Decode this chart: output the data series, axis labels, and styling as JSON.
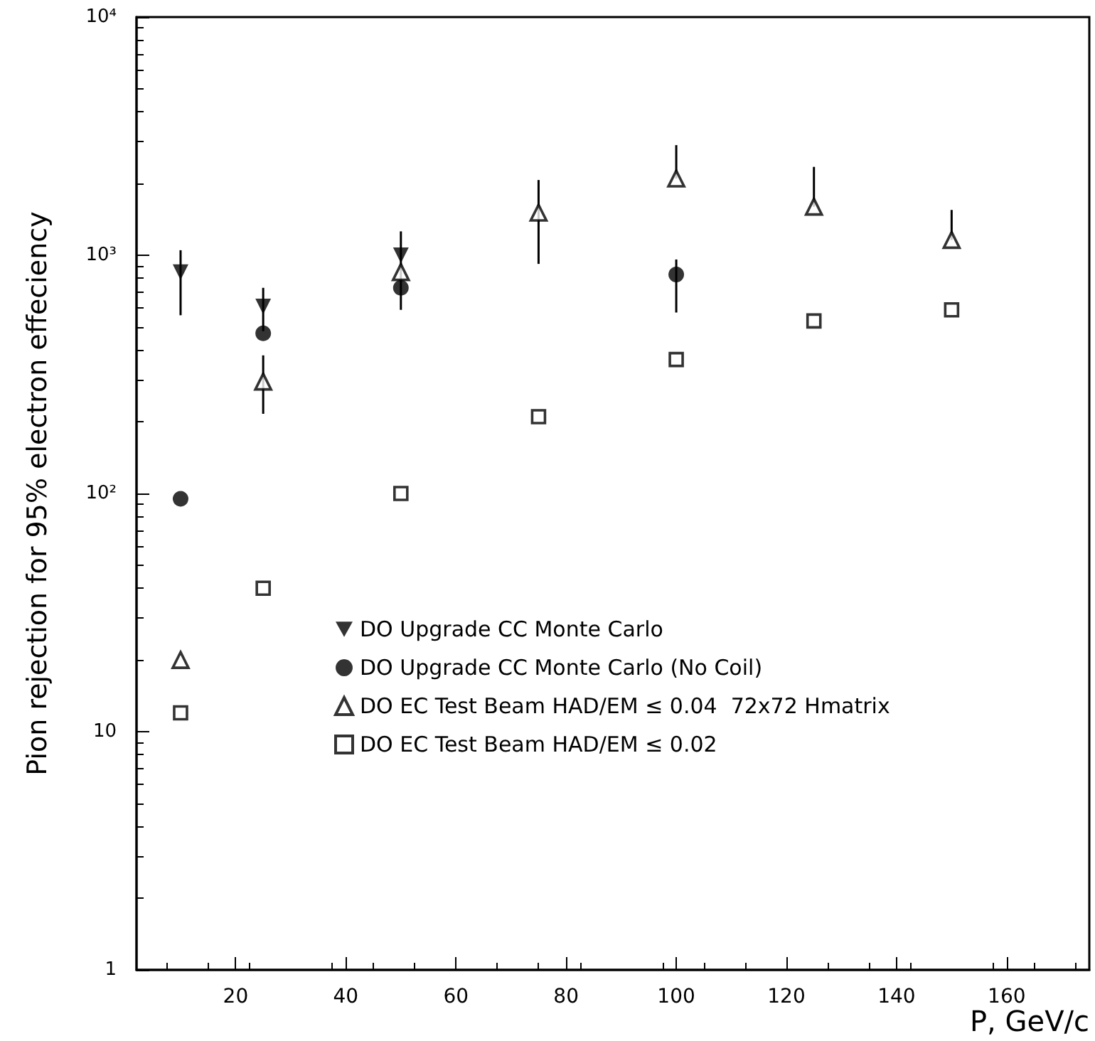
{
  "chart_data": {
    "type": "scatter",
    "xlabel": "P, GeV/c",
    "ylabel": "Pion rejection for 95% electron effeciency",
    "xlim": [
      2,
      175
    ],
    "xticks": [
      20,
      40,
      60,
      80,
      100,
      120,
      140,
      160
    ],
    "ylim": [
      1,
      10000
    ],
    "yticks": [
      1,
      10,
      {
        "value": 100,
        "label": "10²"
      },
      {
        "value": 1000,
        "label": "10³"
      },
      {
        "value": 10000,
        "label": "10⁴"
      }
    ],
    "log": "y",
    "grid": false,
    "legend": "bottom",
    "series": [
      {
        "name": "DO Upgrade CC Monte Carlo",
        "color": "#000000",
        "marker": "triangle-down",
        "x": [
          10,
          25,
          50
        ],
        "values": [
          850,
          610,
          1000
        ],
        "errors": [
          [
            560,
            1050
          ],
          [
            480,
            730
          ],
          [
            850,
            1260
          ]
        ]
      },
      {
        "name": "DO Upgrade CC Monte Carlo (No Coil)",
        "color": "#000000",
        "marker": "circle",
        "x": [
          10,
          25,
          50,
          100
        ],
        "values": [
          95,
          470,
          730,
          830
        ],
        "errors": [
          null,
          null,
          [
            590,
            850
          ],
          [
            575,
            960
          ]
        ]
      },
      {
        "name": "DO EC Test Beam HAD/EM ≤ 0.04  72x72 Hmatrix",
        "color": "#000000",
        "marker": "triangle-open",
        "x": [
          10,
          25,
          50,
          75,
          100,
          125,
          150
        ],
        "values": [
          20,
          295,
          850,
          1510,
          2100,
          1600,
          1160
        ],
        "errors": [
          null,
          [
            216,
            380
          ],
          null,
          [
            920,
            2070
          ],
          [
            2100,
            2900
          ],
          [
            1600,
            2350
          ],
          [
            1160,
            1550
          ]
        ]
      },
      {
        "name": "DO EC Test Beam HAD/EM ≤ 0.02",
        "color": "#000000",
        "marker": "square-open",
        "x": [
          10,
          25,
          50,
          75,
          100,
          125,
          150
        ],
        "values": [
          12,
          40,
          100,
          210,
          365,
          530,
          590
        ]
      }
    ]
  }
}
